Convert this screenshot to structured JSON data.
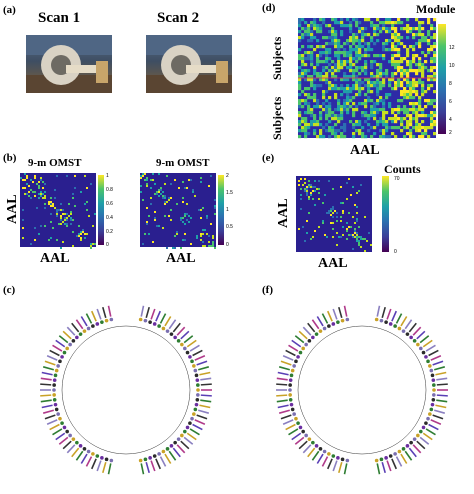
{
  "panels": {
    "a": {
      "label": "(a)",
      "scan1": "Scan 1",
      "scan2": "Scan 2"
    },
    "b": {
      "label": "(b)",
      "title1": "9-m OMST",
      "title2": "9-m OMST",
      "ylabel": "AAL",
      "xlabel": "AAL",
      "cbar1_ticks": [
        "1",
        "0.8",
        "0.6",
        "0.4",
        "0.2",
        "0"
      ],
      "cbar2_ticks": [
        "2",
        "1.5",
        "1",
        "0.5",
        "0"
      ]
    },
    "c": {
      "label": "(c)"
    },
    "d": {
      "label": "(d)",
      "cbar_title": "Module",
      "ylabel_top": "Subjects",
      "ylabel_bottom": "Subjects",
      "xlabel": "AAL",
      "cbar_ticks": [
        "12",
        "10",
        "8",
        "6",
        "4",
        "2"
      ]
    },
    "e": {
      "label": "(e)",
      "cbar_title": "Counts",
      "ylabel": "AAL",
      "xlabel": "AAL",
      "cbar_ticks": [
        "70",
        "0"
      ]
    },
    "f": {
      "label": "(f)"
    }
  },
  "colors": {
    "heatmap_bg": "#2a1f8f",
    "viridis": [
      "#440154",
      "#3b3f99",
      "#2c6fb0",
      "#1fa0a8",
      "#4cc46a",
      "#c7e020",
      "#fde725"
    ],
    "node_colors": [
      "#2b2b2b",
      "#6a2ea0",
      "#2e7d32",
      "#c9a227",
      "#7a6fb0"
    ]
  }
}
